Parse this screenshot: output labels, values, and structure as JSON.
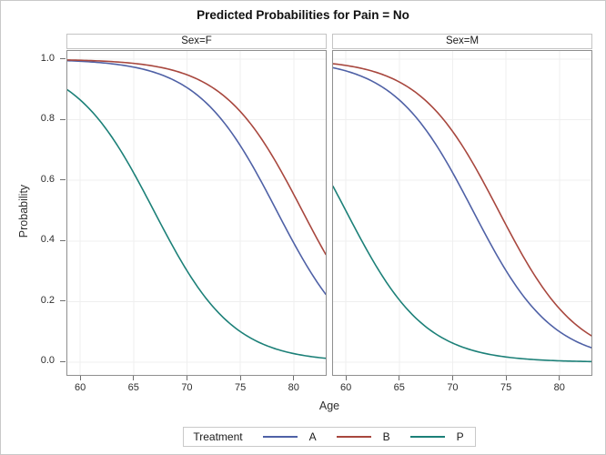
{
  "title": "Predicted Probabilities for Pain = No",
  "y_axis": {
    "label": "Probability",
    "ticks": [
      "0.0",
      "0.2",
      "0.4",
      "0.6",
      "0.8",
      "1.0"
    ],
    "tick_values": [
      0.0,
      0.2,
      0.4,
      0.6,
      0.8,
      1.0
    ]
  },
  "x_axis": {
    "label": "Age",
    "ticks": [
      "60",
      "65",
      "70",
      "75",
      "80"
    ],
    "tick_values": [
      60,
      65,
      70,
      75,
      80
    ]
  },
  "legend": {
    "title": "Treatment",
    "entries": [
      {
        "label": "A",
        "color": "#4F61A6"
      },
      {
        "label": "B",
        "color": "#A8473E"
      },
      {
        "label": "P",
        "color": "#1C8078"
      }
    ]
  },
  "colors": {
    "grid": "#EFEFEF",
    "plot_border": "#8F8F8F",
    "header_border": "#C4C4C4",
    "tick_mark": "#6F6F6F",
    "outer_border": "#C9C9C9",
    "text": "#2E2E2E",
    "series_a": "#4F61A6",
    "series_b": "#A8473E",
    "series_p": "#1C8078"
  },
  "chart_data": {
    "type": "line",
    "title": "Predicted Probabilities for Pain = No",
    "xlabel": "Age",
    "ylabel": "Probability",
    "x_view": [
      58.8,
      83.0
    ],
    "y_view": [
      -0.0421,
      1.0271
    ],
    "x_ticks": [
      60,
      65,
      70,
      75,
      80
    ],
    "y_ticks": [
      0.0,
      0.2,
      0.4,
      0.6,
      0.8,
      1.0
    ],
    "xlim": [
      59,
      83
    ],
    "ylim": [
      0.0,
      1.0
    ],
    "grid": true,
    "legend_position": "bottom",
    "line_width": 1.6,
    "panels": [
      {
        "header": "Sex=F",
        "series": [
          {
            "name": "A",
            "color": "#4F61A6",
            "logistic": {
              "midpoint": 78.4,
              "slope": -0.27
            },
            "ages": [
              59,
              61,
              63,
              65,
              67,
              69,
              71,
              73,
              75,
              77,
              79,
              81,
              83
            ],
            "probabilities": [
              0.995,
              0.991,
              0.985,
              0.974,
              0.956,
              0.927,
              0.881,
              0.811,
              0.715,
              0.593,
              0.46,
              0.331,
              0.224
            ]
          },
          {
            "name": "B",
            "color": "#A8473E",
            "logistic": {
              "midpoint": 80.8,
              "slope": -0.27
            },
            "ages": [
              59,
              61,
              63,
              65,
              67,
              69,
              71,
              73,
              75,
              77,
              79,
              81,
              83
            ],
            "probabilities": [
              0.997,
              0.995,
              0.992,
              0.986,
              0.977,
              0.96,
              0.934,
              0.892,
              0.827,
              0.736,
              0.619,
              0.487,
              0.356
            ]
          },
          {
            "name": "P",
            "color": "#1C8078",
            "logistic": {
              "midpoint": 66.9,
              "slope": -0.27
            },
            "ages": [
              59,
              61,
              63,
              65,
              67,
              69,
              71,
              73,
              75,
              77,
              79,
              81,
              83
            ],
            "probabilities": [
              0.894,
              0.831,
              0.741,
              0.626,
              0.493,
              0.362,
              0.248,
              0.161,
              0.101,
              0.061,
              0.037,
              0.022,
              0.013
            ]
          }
        ]
      },
      {
        "header": "Sex=M",
        "series": [
          {
            "name": "A",
            "color": "#4F61A6",
            "logistic": {
              "midpoint": 71.9,
              "slope": -0.27
            },
            "ages": [
              59,
              61,
              63,
              65,
              67,
              69,
              71,
              73,
              75,
              77,
              79,
              81,
              83
            ],
            "probabilities": [
              0.97,
              0.95,
              0.917,
              0.866,
              0.79,
              0.686,
              0.561,
              0.426,
              0.302,
              0.202,
              0.128,
              0.079,
              0.048
            ]
          },
          {
            "name": "B",
            "color": "#A8473E",
            "logistic": {
              "midpoint": 74.3,
              "slope": -0.27
            },
            "ages": [
              59,
              61,
              63,
              65,
              67,
              69,
              71,
              73,
              75,
              77,
              79,
              81,
              83
            ],
            "probabilities": [
              0.984,
              0.973,
              0.955,
              0.925,
              0.878,
              0.807,
              0.709,
              0.587,
              0.453,
              0.325,
              0.22,
              0.141,
              0.087
            ]
          },
          {
            "name": "P",
            "color": "#1C8078",
            "logistic": {
              "midpoint": 60.0,
              "slope": -0.27
            },
            "ages": [
              59,
              61,
              63,
              65,
              67,
              69,
              71,
              73,
              75,
              77,
              79,
              81,
              83
            ],
            "probabilities": [
              0.567,
              0.433,
              0.308,
              0.206,
              0.131,
              0.081,
              0.049,
              0.029,
              0.017,
              0.01,
              0.006,
              0.003,
              0.002
            ]
          }
        ]
      }
    ]
  }
}
